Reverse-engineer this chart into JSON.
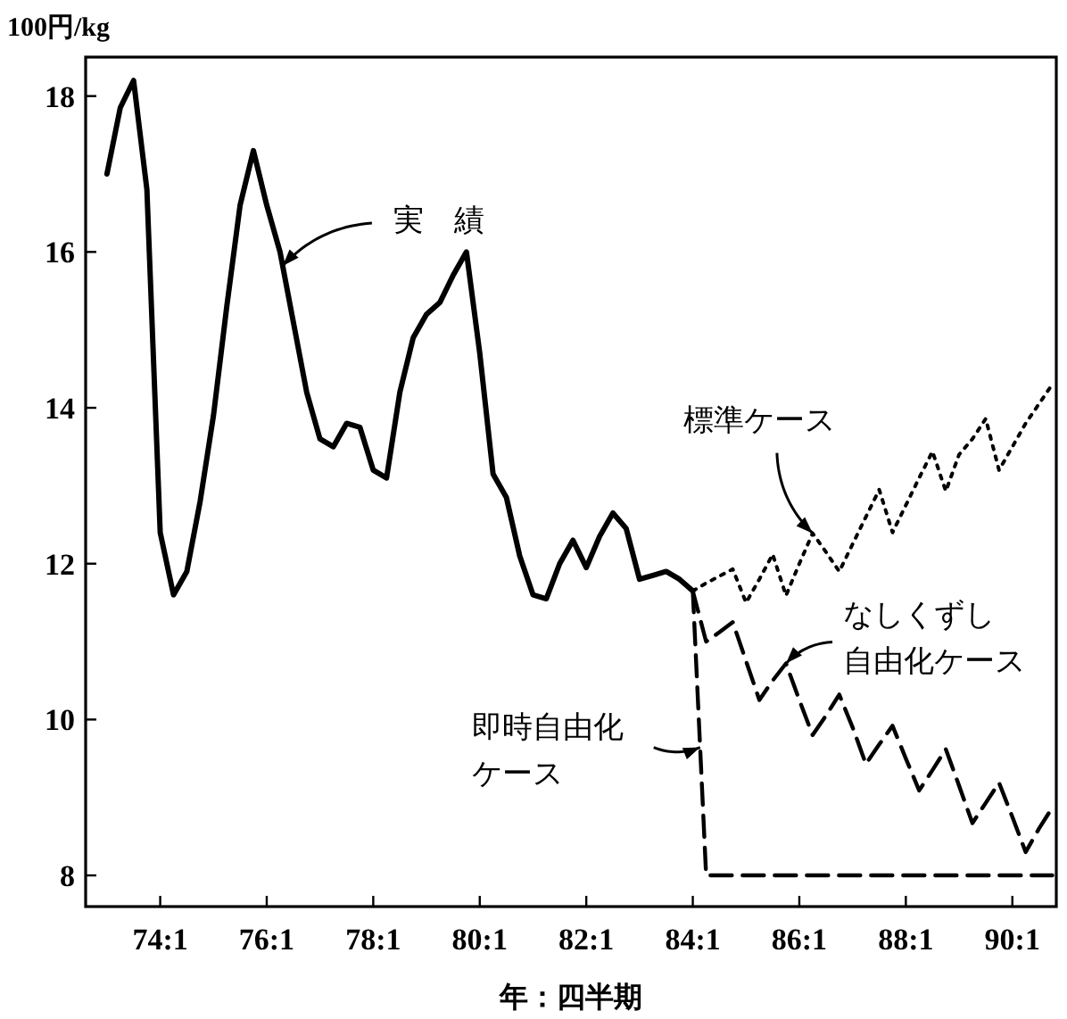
{
  "chart_data": {
    "type": "line",
    "xlabel": "年：四半期",
    "ylabel": "100円/kg",
    "categories": [
      null,
      null,
      null,
      null,
      "74:1",
      null,
      null,
      null,
      null,
      null,
      null,
      null,
      "76:1",
      null,
      null,
      null,
      null,
      null,
      null,
      null,
      "78:1",
      null,
      null,
      null,
      null,
      null,
      null,
      null,
      "80:1",
      null,
      null,
      null,
      null,
      null,
      null,
      null,
      "82:1",
      null,
      null,
      null,
      null,
      null,
      null,
      null,
      "84:1",
      null,
      null,
      null,
      null,
      null,
      null,
      null,
      "86:1",
      null,
      null,
      null,
      null,
      null,
      null,
      null,
      "88:1",
      null,
      null,
      null,
      null,
      null,
      null,
      null,
      "90:1",
      null,
      null,
      null
    ],
    "ylim": [
      7.6,
      18.5
    ],
    "yticks": [
      8,
      10,
      12,
      14,
      16,
      18
    ],
    "grid": false,
    "marker": "none",
    "series": [
      {
        "name": "実　績",
        "color": "#000000",
        "line_style": "solid",
        "values": [
          17.0,
          17.85,
          18.2,
          16.8,
          12.4,
          11.6,
          11.9,
          12.8,
          13.9,
          15.3,
          16.6,
          17.3,
          16.6,
          16.0,
          15.1,
          14.2,
          13.6,
          13.5,
          13.8,
          13.75,
          13.2,
          13.1,
          14.2,
          14.9,
          15.2,
          15.35,
          15.7,
          16.0,
          14.7,
          13.15,
          12.85,
          12.1,
          11.6,
          11.55,
          12.0,
          12.3,
          11.95,
          12.35,
          12.65,
          12.45,
          11.8,
          11.85,
          11.9,
          11.8,
          11.65,
          null,
          null,
          null,
          null,
          null,
          null,
          null,
          null,
          null,
          null,
          null,
          null,
          null,
          null,
          null,
          null,
          null,
          null,
          null,
          null,
          null,
          null,
          null,
          null,
          null,
          null,
          null
        ]
      },
      {
        "name": "標準ケース",
        "color": "#000000",
        "line_style": "dotted",
        "values": [
          null,
          null,
          null,
          null,
          null,
          null,
          null,
          null,
          null,
          null,
          null,
          null,
          null,
          null,
          null,
          null,
          null,
          null,
          null,
          null,
          null,
          null,
          null,
          null,
          null,
          null,
          null,
          null,
          null,
          null,
          null,
          null,
          null,
          null,
          null,
          null,
          null,
          null,
          null,
          null,
          null,
          null,
          null,
          null,
          11.65,
          11.75,
          11.84,
          11.93,
          11.5,
          11.8,
          12.12,
          11.59,
          12.0,
          12.39,
          12.15,
          11.9,
          12.25,
          12.6,
          12.95,
          12.4,
          12.75,
          13.1,
          13.44,
          12.93,
          13.4,
          13.6,
          13.86,
          13.2,
          13.5,
          13.8,
          14.05,
          14.3
        ]
      },
      {
        "name": "なしくずし自由化ケース",
        "color": "#000000",
        "line_style": "dashed",
        "values": [
          null,
          null,
          null,
          null,
          null,
          null,
          null,
          null,
          null,
          null,
          null,
          null,
          null,
          null,
          null,
          null,
          null,
          null,
          null,
          null,
          null,
          null,
          null,
          null,
          null,
          null,
          null,
          null,
          null,
          null,
          null,
          null,
          null,
          null,
          null,
          null,
          null,
          null,
          null,
          null,
          null,
          null,
          null,
          null,
          11.65,
          11.0,
          11.12,
          11.25,
          10.75,
          10.25,
          10.5,
          10.72,
          10.25,
          9.8,
          10.05,
          10.32,
          9.9,
          9.43,
          9.68,
          9.92,
          9.5,
          9.09,
          9.35,
          9.62,
          9.15,
          8.67,
          8.93,
          9.19,
          8.75,
          8.3,
          8.6,
          8.87
        ]
      },
      {
        "name": "即時自由化ケース",
        "color": "#000000",
        "line_style": "dashed",
        "values": [
          null,
          null,
          null,
          null,
          null,
          null,
          null,
          null,
          null,
          null,
          null,
          null,
          null,
          null,
          null,
          null,
          null,
          null,
          null,
          null,
          null,
          null,
          null,
          null,
          null,
          null,
          null,
          null,
          null,
          null,
          null,
          null,
          null,
          null,
          null,
          null,
          null,
          null,
          null,
          null,
          null,
          null,
          null,
          null,
          11.65,
          8.0,
          8.0,
          8.0,
          8.0,
          8.0,
          8.0,
          8.0,
          8.0,
          8.0,
          8.0,
          8.0,
          8.0,
          8.0,
          8.0,
          8.0,
          8.0,
          8.0,
          8.0,
          8.0,
          8.0,
          8.0,
          8.0,
          8.0,
          8.0,
          8.0,
          8.0,
          8.0
        ]
      }
    ]
  }
}
